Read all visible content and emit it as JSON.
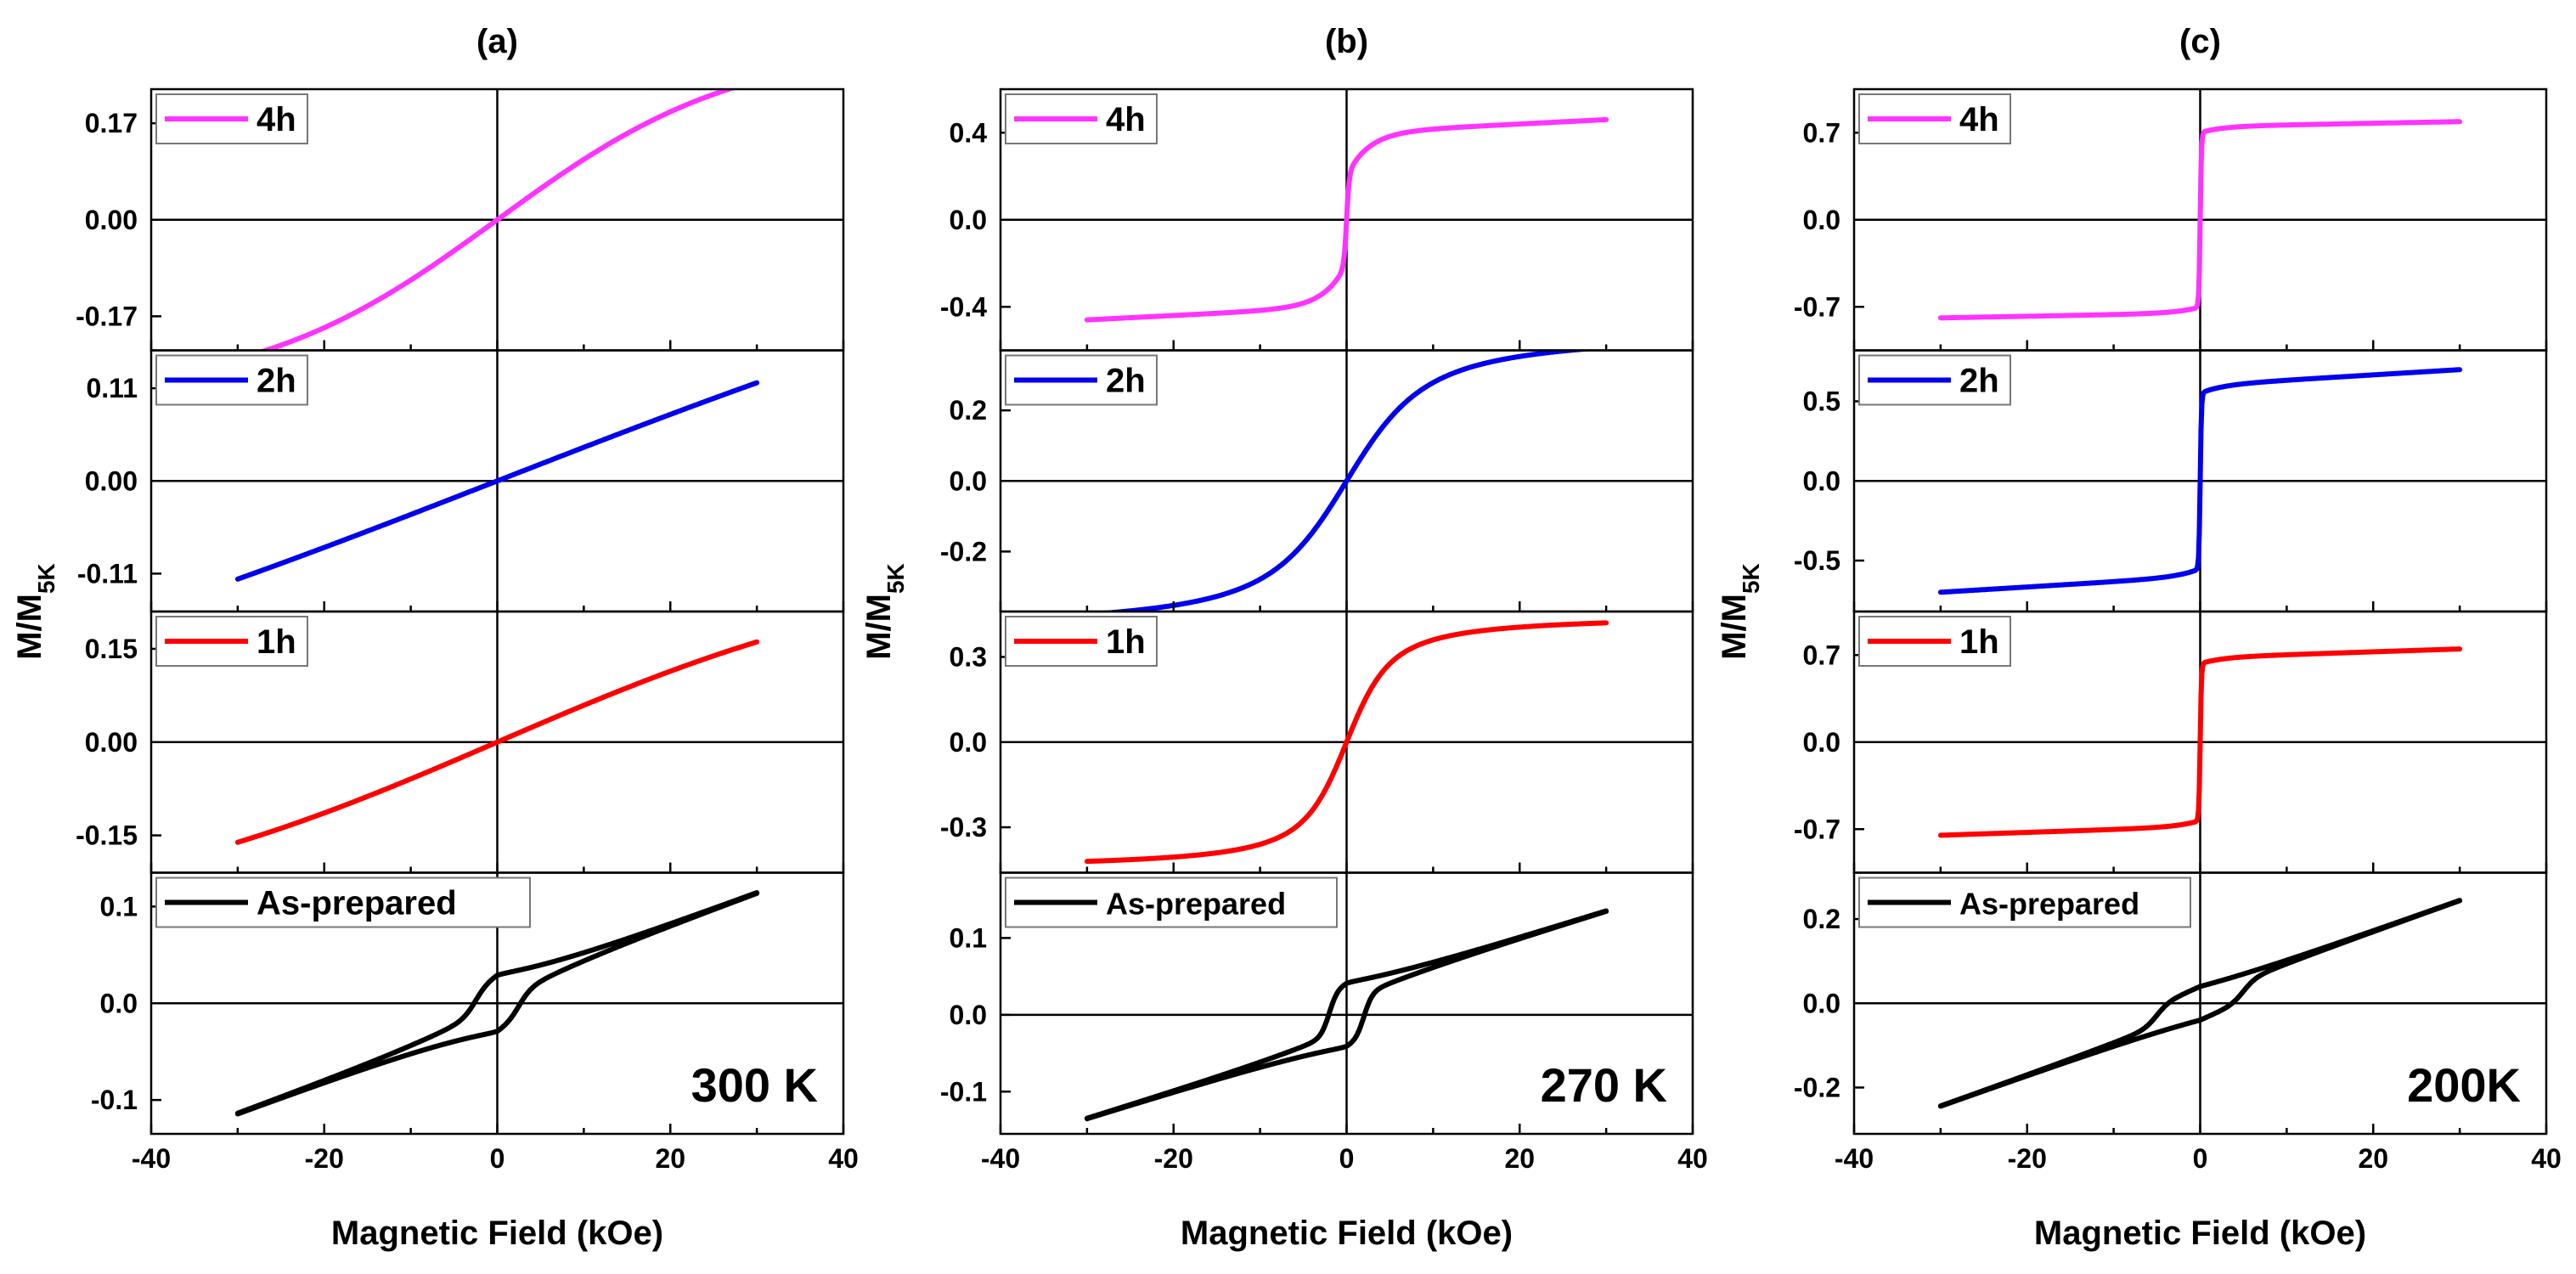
{
  "chart_data": [
    {
      "id": "a",
      "panel_label": "(a)",
      "temperature_label": "300 K",
      "type": "line",
      "xlabel": "Magnetic Field (kOe)",
      "ylabel_main": "M/M",
      "ylabel_sub": "5K",
      "xlim": [
        -40,
        40
      ],
      "x_ticks": [
        "-40",
        "-20",
        "0",
        "20",
        "40"
      ],
      "subplots": [
        {
          "legend": "4h",
          "color": "#ff33ff",
          "ylim": [
            -0.23,
            0.23
          ],
          "ticks": [
            {
              "v": 0.17,
              "t": "0.17"
            },
            {
              "v": 0.0,
              "t": "0.00"
            },
            {
              "v": -0.17,
              "t": "-0.17"
            }
          ],
          "shape": {
            "kind": "tanh",
            "ms": 0.31,
            "h0": 28
          }
        },
        {
          "legend": "2h",
          "color": "#0000ee",
          "ylim": [
            -0.155,
            0.155
          ],
          "ticks": [
            {
              "v": 0.11,
              "t": "0.11"
            },
            {
              "v": 0.0,
              "t": "0.00"
            },
            {
              "v": -0.11,
              "t": "-0.11"
            }
          ],
          "shape": {
            "kind": "tanh",
            "ms": 0.4,
            "h0": 100
          }
        },
        {
          "legend": "1h",
          "color": "#ff0000",
          "ylim": [
            -0.21,
            0.21
          ],
          "ticks": [
            {
              "v": 0.15,
              "t": "0.15"
            },
            {
              "v": 0.0,
              "t": "0.00"
            },
            {
              "v": -0.15,
              "t": "-0.15"
            }
          ],
          "shape": {
            "kind": "tanh",
            "ms": 0.3,
            "h0": 50
          }
        },
        {
          "legend": "As-prepared",
          "color": "#000000",
          "ylim": [
            -0.135,
            0.135
          ],
          "ticks": [
            {
              "v": 0.1,
              "t": "0.1"
            },
            {
              "v": 0.0,
              "t": "0.0"
            },
            {
              "v": -0.1,
              "t": "-0.1"
            }
          ],
          "shape": {
            "kind": "hyst",
            "slope": 0.0033,
            "ms": 0.015,
            "hc": 2.5,
            "w": 1.5,
            "mh": 0.015
          }
        }
      ]
    },
    {
      "id": "b",
      "panel_label": "(b)",
      "temperature_label": "270 K",
      "type": "line",
      "xlabel": "Magnetic Field (kOe)",
      "ylabel_main": "M/M",
      "ylabel_sub": "5K",
      "xlim": [
        -40,
        40
      ],
      "x_ticks": [
        "-40",
        "-20",
        "0",
        "20",
        "40"
      ],
      "subplots": [
        {
          "legend": "4h",
          "color": "#ff33ff",
          "ylim": [
            -0.6,
            0.6
          ],
          "ticks": [
            {
              "v": 0.4,
              "t": "0.4"
            },
            {
              "v": 0.0,
              "t": "0.0"
            },
            {
              "v": -0.4,
              "t": "-0.4"
            }
          ],
          "shape": {
            "kind": "sharp",
            "ms": 0.2,
            "ws": 0.2,
            "hs": 0.3,
            "slope": 0.002,
            "hl": 0.6
          }
        },
        {
          "legend": "2h",
          "color": "#0000ee",
          "ylim": [
            -0.37,
            0.37
          ],
          "ticks": [
            {
              "v": 0.2,
              "t": "0.2"
            },
            {
              "v": 0.0,
              "t": "0.0"
            },
            {
              "v": -0.2,
              "t": "-0.2"
            }
          ],
          "shape": {
            "kind": "langevin",
            "ms": 0.43,
            "h0": 3.6
          }
        },
        {
          "legend": "1h",
          "color": "#ff0000",
          "ylim": [
            -0.46,
            0.46
          ],
          "ticks": [
            {
              "v": 0.3,
              "t": "0.3"
            },
            {
              "v": 0.0,
              "t": "0.0"
            },
            {
              "v": -0.3,
              "t": "-0.3"
            }
          ],
          "shape": {
            "kind": "langevin",
            "ms": 0.45,
            "h0": 2.0
          }
        },
        {
          "legend": "As-prepared",
          "color": "#000000",
          "ylim": [
            -0.155,
            0.185
          ],
          "ticks": [
            {
              "v": 0.1,
              "t": "0.1"
            },
            {
              "v": 0.0,
              "t": "0.0"
            },
            {
              "v": -0.1,
              "t": "-0.1"
            }
          ],
          "shape": {
            "kind": "hyst",
            "slope": 0.0035,
            "ms": 0.03,
            "hc": 2.0,
            "w": 1.0,
            "mh": 0.012
          }
        }
      ]
    },
    {
      "id": "c",
      "panel_label": "(c)",
      "temperature_label": "200K",
      "type": "line",
      "xlabel": "Magnetic Field (kOe)",
      "ylabel_main": "M/M",
      "ylabel_sub": "5K",
      "xlim": [
        -40,
        40
      ],
      "x_ticks": [
        "-40",
        "-20",
        "0",
        "20",
        "40"
      ],
      "subplots": [
        {
          "legend": "4h",
          "color": "#ff33ff",
          "ylim": [
            -1.05,
            1.05
          ],
          "ticks": [
            {
              "v": 0.7,
              "t": "0.7"
            },
            {
              "v": 0.0,
              "t": "0.0"
            },
            {
              "v": -0.7,
              "t": "-0.7"
            }
          ],
          "shape": {
            "kind": "sharp",
            "ms": 0.7,
            "ws": 0.05,
            "hs": 0.15,
            "slope": 0.0013,
            "hl": 0.6
          }
        },
        {
          "legend": "2h",
          "color": "#0000ee",
          "ylim": [
            -0.82,
            0.82
          ],
          "ticks": [
            {
              "v": 0.5,
              "t": "0.5"
            },
            {
              "v": 0.0,
              "t": "0.0"
            },
            {
              "v": -0.5,
              "t": "-0.5"
            }
          ],
          "shape": {
            "kind": "sharp",
            "ms": 0.55,
            "ws": 0.05,
            "hs": 0.15,
            "slope": 0.0033,
            "hl": 0.6
          }
        },
        {
          "legend": "1h",
          "color": "#ff0000",
          "ylim": [
            -1.05,
            1.05
          ],
          "ticks": [
            {
              "v": 0.7,
              "t": "0.7"
            },
            {
              "v": 0.0,
              "t": "0.0"
            },
            {
              "v": -0.7,
              "t": "-0.7"
            }
          ],
          "shape": {
            "kind": "sharp",
            "ms": 0.63,
            "ws": 0.05,
            "hs": 0.15,
            "slope": 0.0023,
            "hl": 0.6
          }
        },
        {
          "legend": "As-prepared",
          "color": "#000000",
          "ylim": [
            -0.31,
            0.31
          ],
          "ticks": [
            {
              "v": 0.2,
              "t": "0.2"
            },
            {
              "v": 0.0,
              "t": "0.0"
            },
            {
              "v": -0.2,
              "t": "-0.2"
            }
          ],
          "shape": {
            "kind": "hyst",
            "slope": 0.0073,
            "ms": 0.025,
            "hc": 5.0,
            "w": 1.5,
            "mh": 0.015
          }
        }
      ]
    }
  ]
}
